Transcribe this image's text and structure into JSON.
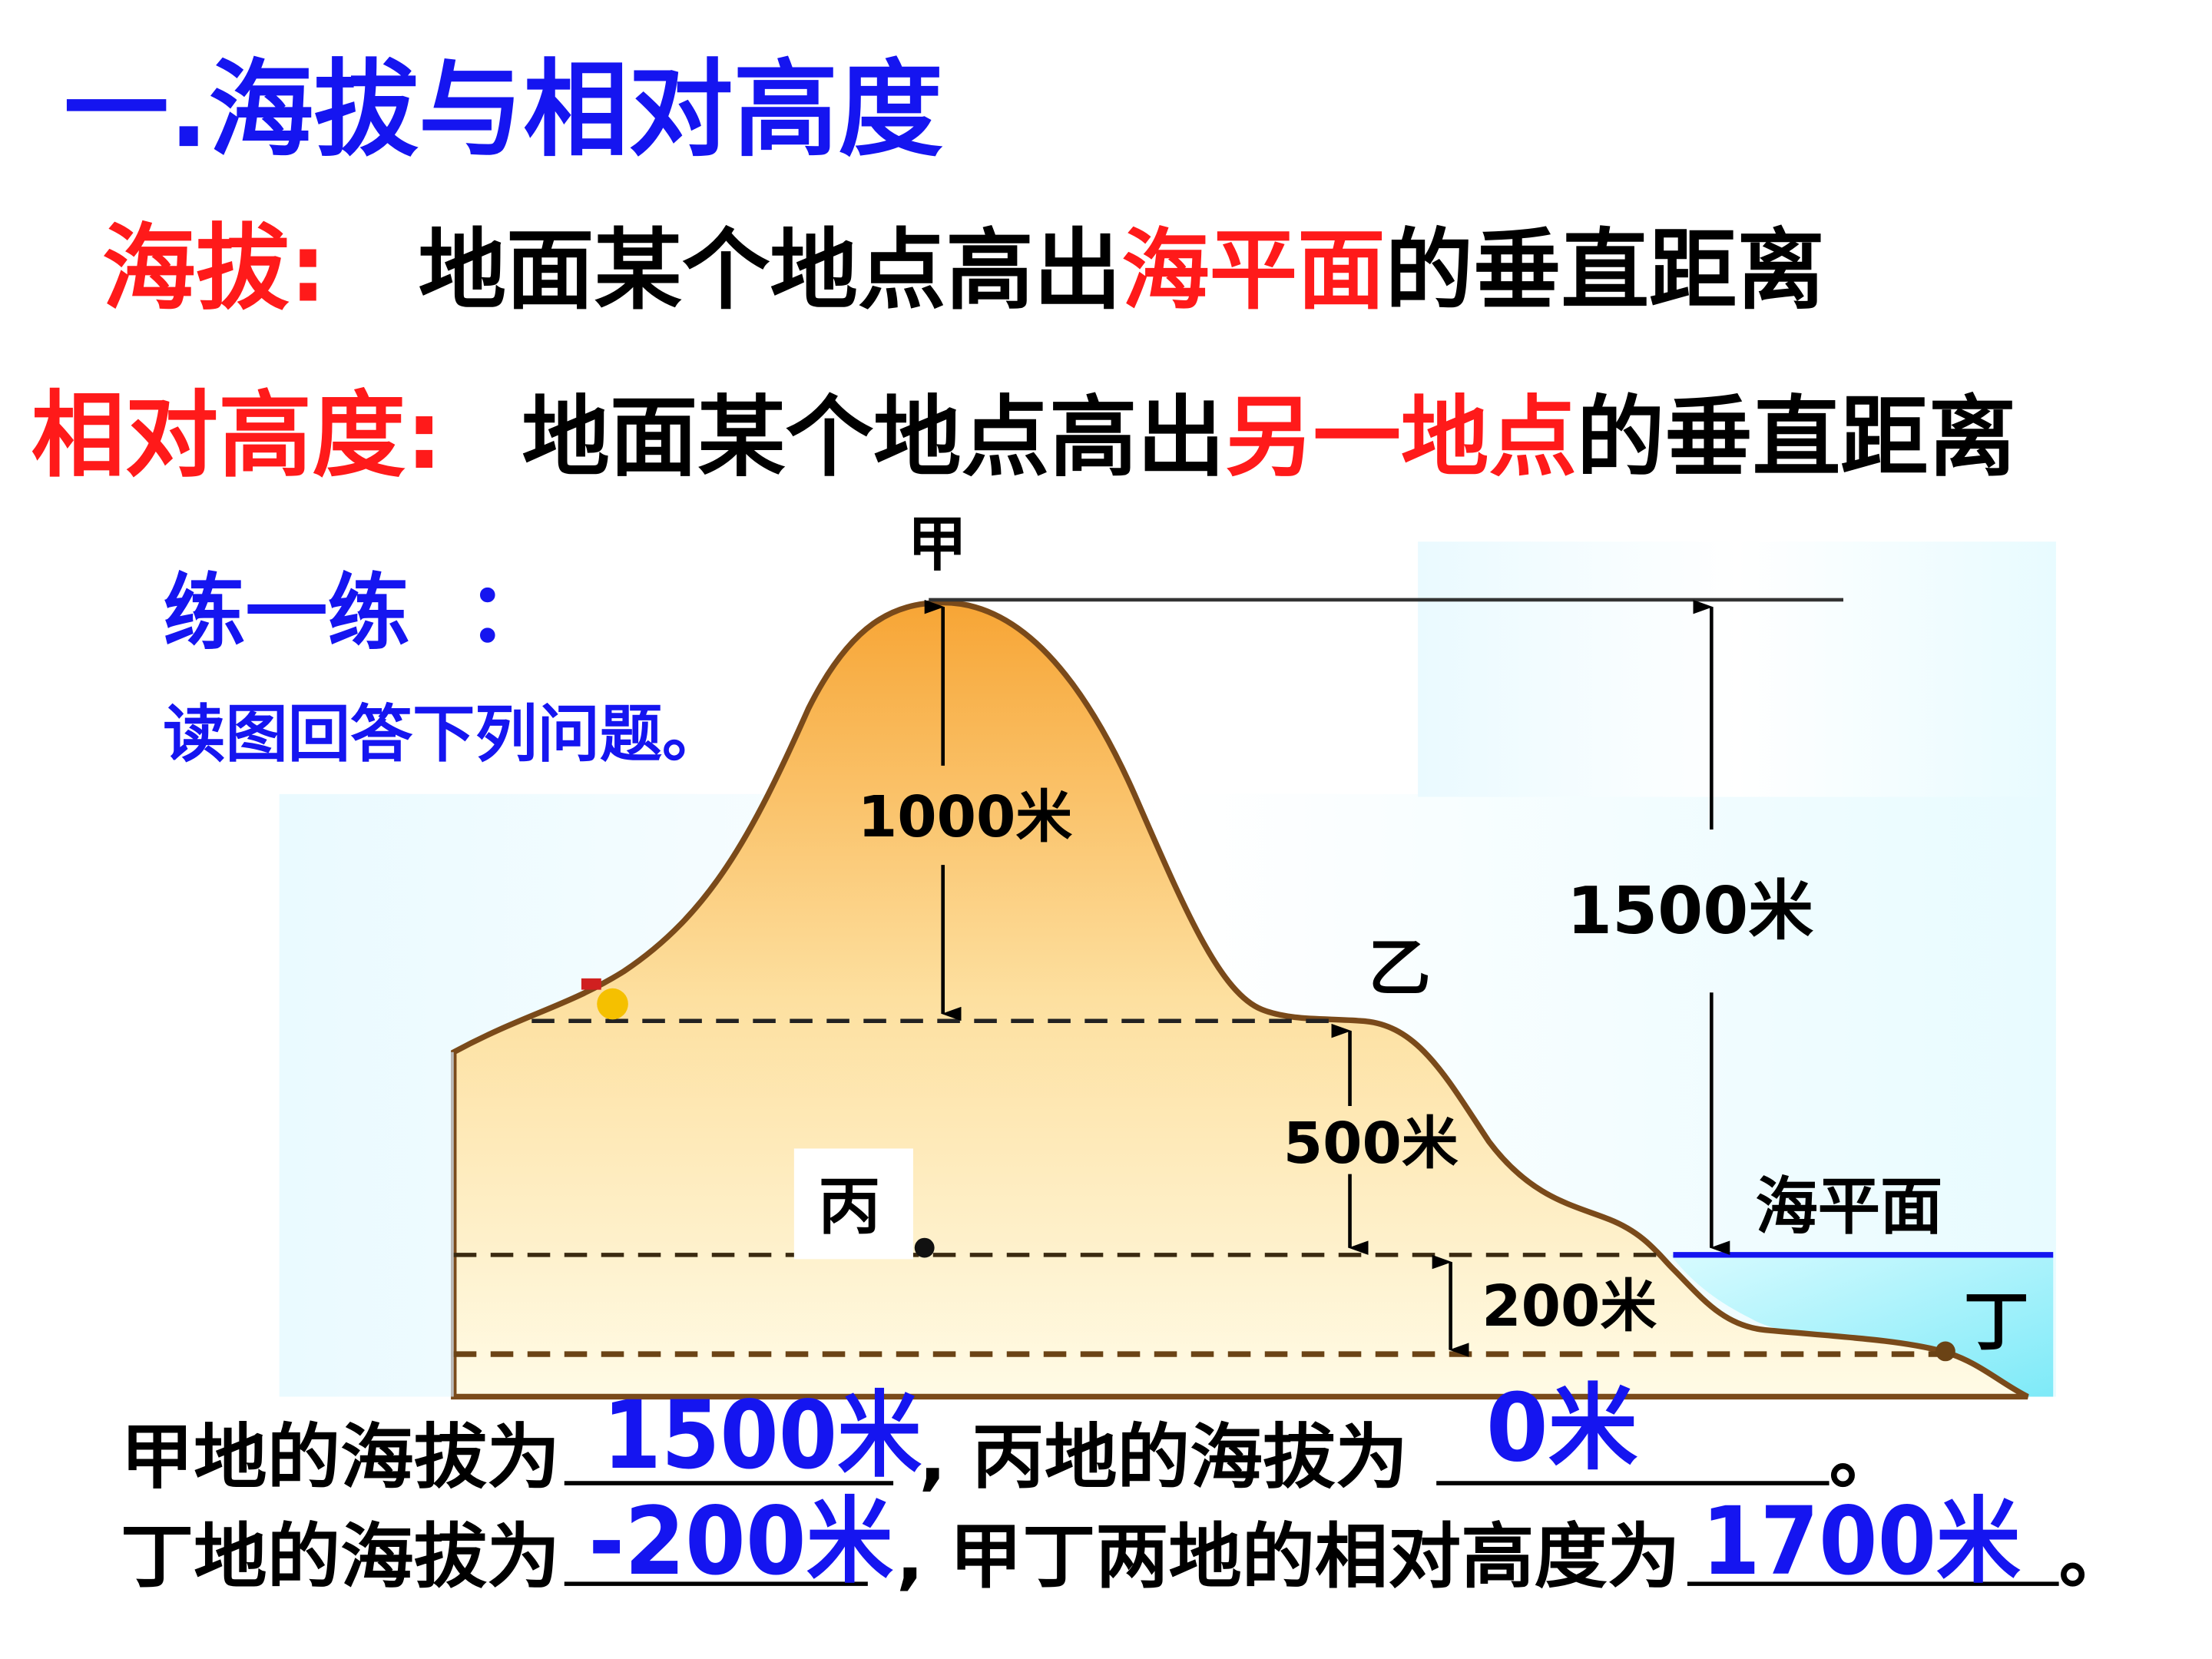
{
  "title": "一.海拔与相对高度",
  "definitions": [
    {
      "term": "海拔:",
      "text_before": "地面某个地点高出",
      "highlight": "海平面",
      "text_after": "的垂直距离"
    },
    {
      "term": "相对高度:",
      "text_before": "地面某个地点高出",
      "highlight": "另一地点",
      "text_after": "的垂直距离"
    }
  ],
  "exercise": {
    "heading": "练一练  ：",
    "instruction": "读图回答下列问题。"
  },
  "diagram": {
    "points": {
      "jia": "甲",
      "yi": "乙",
      "bing": "丙",
      "ding": "丁"
    },
    "sea_level_label": "海平面",
    "measurements": {
      "jia_to_yi": "1000米",
      "yi_to_bing": "500米",
      "bing_to_ding": "200米",
      "jia_to_sea": "1500米"
    },
    "colors": {
      "terrain_top": "#f7a535",
      "terrain_bottom": "#fffbe0",
      "outline": "#7a4a1a",
      "sea": "#9ef0fb",
      "sea_line": "#1515f0"
    }
  },
  "questions": {
    "q1_prefix": "甲地的海拔为",
    "q1_answer": "1500米",
    "q2_prefix": ", 丙地的海拔为",
    "q2_answer": "0米",
    "q2_end": "。",
    "q3_prefix": "丁地的海拔为",
    "q3_answer": "-200米",
    "q4_prefix": ", 甲丁两地的相对高度为",
    "q4_answer": "1700米",
    "q4_end": "。"
  }
}
